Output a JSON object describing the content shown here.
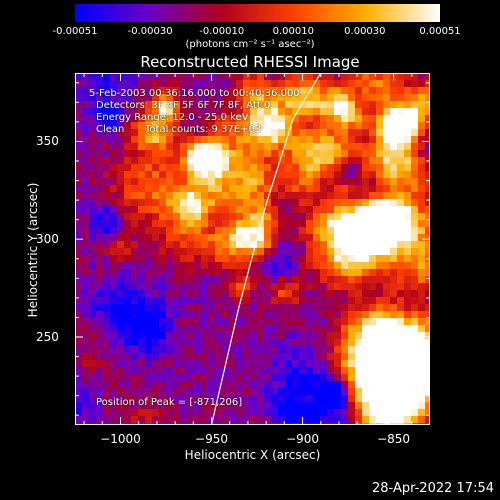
{
  "colorbar": {
    "ticks": [
      "-0.00051",
      "-0.00030",
      "-0.00010",
      "0.00010",
      "0.00030",
      "0.00051"
    ],
    "tick_values": [
      -0.00051,
      -0.0003,
      -0.0001,
      0.0001,
      0.0003,
      0.00051
    ],
    "range": [
      -0.00051,
      0.00051
    ],
    "units": "(photons cm⁻² s⁻¹ asec⁻²)",
    "colors": [
      "#0000ff",
      "#6a00c8",
      "#b00020",
      "#ff4000",
      "#ffb000",
      "#ffffff"
    ]
  },
  "chart_data": {
    "type": "heatmap",
    "title": "Reconstructed RHESSI Image",
    "xlabel": "Heliocentric X (arcsec)",
    "ylabel": "Heliocentric Y (arcsec)",
    "xlim": [
      -1025,
      -830
    ],
    "ylim": [
      205,
      385
    ],
    "xticks": [
      -1000,
      -950,
      -900,
      -850
    ],
    "xtick_labels": [
      "−1000",
      "−950",
      "−900",
      "−850"
    ],
    "yticks": [
      250,
      300,
      350
    ],
    "ytick_labels": [
      "250",
      "300",
      "350"
    ],
    "limb": [
      [
        -950,
        205
      ],
      [
        -935,
        265
      ],
      [
        -920,
        318
      ],
      [
        -905,
        362
      ],
      [
        -890,
        385
      ]
    ],
    "peak": [
      -871,
      206
    ],
    "annotations": {
      "time": "5-Feb-2003 00:36:16.000 to 00:40:36.000",
      "detectors": "Detectors: 3F 4F 5F 6F 7F 8F, Att 0",
      "energy": "Energy Range: 12.0 - 25.0 keV",
      "method": "Clean",
      "counts": "Total counts: 9.37E+03",
      "peak_text": "Position of Peak = [-871,206]"
    }
  },
  "footer": {
    "timestamp": "28-Apr-2022 17:54"
  }
}
